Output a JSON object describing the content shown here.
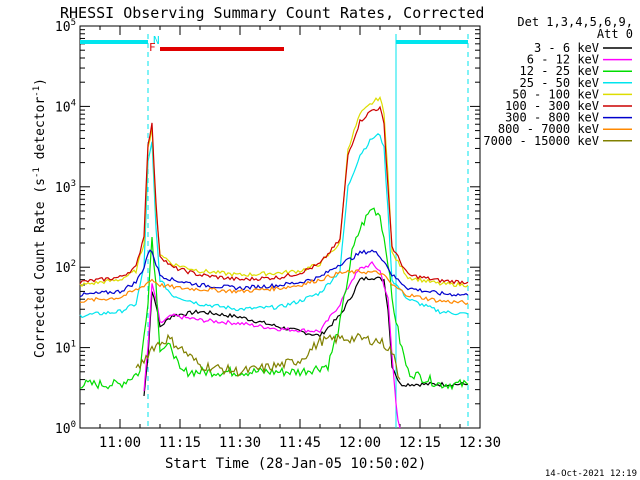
{
  "chart_data": {
    "type": "line",
    "title": "RHESSI Observing Summary Count Rates, Corrected",
    "xlabel": "Start Time (28-Jan-05 10:50:02)",
    "ylabel_main": "Corrected Count Rate (s",
    "ylabel_sup1": "-1",
    "ylabel_mid": " detector",
    "ylabel_sup2": "-1",
    "ylabel_end": ")",
    "y_scale": "log",
    "ylim": [
      1,
      100000
    ],
    "xlim": [
      "10:50",
      "12:30"
    ],
    "x_ticks": [
      "11:00",
      "11:15",
      "11:30",
      "11:45",
      "12:00",
      "12:15",
      "12:30"
    ],
    "y_ticks": [
      {
        "value": 1,
        "base": "10",
        "exp": "0"
      },
      {
        "value": 10,
        "base": "10",
        "exp": "1"
      },
      {
        "value": 100,
        "base": "10",
        "exp": "2"
      },
      {
        "value": 1000,
        "base": "10",
        "exp": "3"
      },
      {
        "value": 10000,
        "base": "10",
        "exp": "4"
      },
      {
        "value": 100000,
        "base": "10",
        "exp": "5"
      }
    ],
    "legend_header": [
      "Det 1,3,4,5,6,9,",
      "Att 0"
    ],
    "legend_position": "right",
    "timestamp": "14-Oct-2021 12:19",
    "annotations": {
      "N_label": "N",
      "F_label": "F"
    },
    "markers": {
      "night_color": "#00e5ee",
      "flag_color": "#e00000",
      "night_bars": [
        [
          "10:50",
          "11:07"
        ],
        [
          "12:09",
          "12:27"
        ]
      ],
      "night_boundaries": [
        "11:07",
        "12:09",
        "12:27"
      ],
      "flag_bar": [
        "11:10",
        "11:41"
      ]
    },
    "series": [
      {
        "name": "3 - 6 keV",
        "color": "#000000",
        "points": [
          [
            "11:06",
            2.5
          ],
          [
            "11:07",
            8
          ],
          [
            "11:08",
            50
          ],
          [
            "11:09",
            35
          ],
          [
            "11:10",
            18
          ],
          [
            "11:13",
            25
          ],
          [
            "11:20",
            28
          ],
          [
            "11:30",
            24
          ],
          [
            "11:40",
            18
          ],
          [
            "11:50",
            14
          ],
          [
            "11:55",
            25
          ],
          [
            "11:58",
            45
          ],
          [
            "12:00",
            70
          ],
          [
            "12:03",
            75
          ],
          [
            "12:06",
            70
          ],
          [
            "12:07",
            30
          ],
          [
            "12:08",
            6
          ],
          [
            "12:10",
            3.5
          ],
          [
            "12:27",
            3.5
          ]
        ]
      },
      {
        "name": "6 - 12 keV",
        "color": "#ff00ff",
        "points": [
          [
            "11:06",
            3
          ],
          [
            "11:07",
            10
          ],
          [
            "11:08",
            60
          ],
          [
            "11:09",
            40
          ],
          [
            "11:10",
            20
          ],
          [
            "11:13",
            25
          ],
          [
            "11:20",
            22
          ],
          [
            "11:30",
            20
          ],
          [
            "11:40",
            17
          ],
          [
            "11:50",
            16
          ],
          [
            "11:55",
            35
          ],
          [
            "11:58",
            70
          ],
          [
            "12:00",
            95
          ],
          [
            "12:03",
            110
          ],
          [
            "12:05",
            90
          ],
          [
            "12:07",
            40
          ],
          [
            "12:08",
            8
          ],
          [
            "12:09",
            2
          ],
          [
            "12:10",
            0.8
          ]
        ]
      },
      {
        "name": "12 - 25 keV",
        "color": "#00dd00",
        "points": [
          [
            "10:50",
            3.5
          ],
          [
            "11:00",
            3.5
          ],
          [
            "11:05",
            5
          ],
          [
            "11:07",
            40
          ],
          [
            "11:08",
            240
          ],
          [
            "11:09",
            60
          ],
          [
            "11:10",
            10
          ],
          [
            "11:13",
            10
          ],
          [
            "11:15",
            5
          ],
          [
            "11:30",
            5
          ],
          [
            "11:45",
            5
          ],
          [
            "11:52",
            6
          ],
          [
            "11:55",
            20
          ],
          [
            "11:58",
            150
          ],
          [
            "12:00",
            300
          ],
          [
            "12:03",
            550
          ],
          [
            "12:05",
            450
          ],
          [
            "12:07",
            120
          ],
          [
            "12:08",
            40
          ],
          [
            "12:10",
            12
          ],
          [
            "12:12",
            5
          ],
          [
            "12:20",
            3.5
          ],
          [
            "12:27",
            3.5
          ]
        ]
      },
      {
        "name": "25 - 50 keV",
        "color": "#00e5ee",
        "points": [
          [
            "10:50",
            25
          ],
          [
            "11:00",
            28
          ],
          [
            "11:04",
            35
          ],
          [
            "11:06",
            100
          ],
          [
            "11:07",
            2000
          ],
          [
            "11:08",
            3500
          ],
          [
            "11:09",
            300
          ],
          [
            "11:10",
            70
          ],
          [
            "11:13",
            45
          ],
          [
            "11:20",
            35
          ],
          [
            "11:30",
            30
          ],
          [
            "11:40",
            32
          ],
          [
            "11:45",
            38
          ],
          [
            "11:50",
            48
          ],
          [
            "11:55",
            90
          ],
          [
            "11:57",
            1000
          ],
          [
            "12:00",
            2500
          ],
          [
            "12:03",
            4000
          ],
          [
            "12:05",
            4500
          ],
          [
            "12:06",
            3000
          ],
          [
            "12:07",
            500
          ],
          [
            "12:08",
            70
          ],
          [
            "12:12",
            40
          ],
          [
            "12:20",
            28
          ],
          [
            "12:27",
            26
          ]
        ]
      },
      {
        "name": "50 - 100 keV",
        "color": "#dddd00",
        "points": [
          [
            "10:50",
            60
          ],
          [
            "11:00",
            70
          ],
          [
            "11:04",
            90
          ],
          [
            "11:06",
            200
          ],
          [
            "11:07",
            3000
          ],
          [
            "11:08",
            5500
          ],
          [
            "11:09",
            500
          ],
          [
            "11:10",
            150
          ],
          [
            "11:13",
            110
          ],
          [
            "11:20",
            90
          ],
          [
            "11:30",
            80
          ],
          [
            "11:40",
            85
          ],
          [
            "11:45",
            90
          ],
          [
            "11:50",
            110
          ],
          [
            "11:55",
            200
          ],
          [
            "11:57",
            3000
          ],
          [
            "12:00",
            8000
          ],
          [
            "12:03",
            11000
          ],
          [
            "12:05",
            13000
          ],
          [
            "12:06",
            8000
          ],
          [
            "12:07",
            1500
          ],
          [
            "12:08",
            150
          ],
          [
            "12:12",
            75
          ],
          [
            "12:20",
            62
          ],
          [
            "12:27",
            60
          ]
        ]
      },
      {
        "name": "100 - 300 keV",
        "color": "#cc0000",
        "points": [
          [
            "10:50",
            65
          ],
          [
            "11:00",
            75
          ],
          [
            "11:04",
            100
          ],
          [
            "11:06",
            250
          ],
          [
            "11:07",
            3500
          ],
          [
            "11:08",
            6000
          ],
          [
            "11:09",
            600
          ],
          [
            "11:10",
            140
          ],
          [
            "11:13",
            100
          ],
          [
            "11:20",
            80
          ],
          [
            "11:30",
            70
          ],
          [
            "11:40",
            75
          ],
          [
            "11:45",
            85
          ],
          [
            "11:50",
            110
          ],
          [
            "11:55",
            220
          ],
          [
            "11:57",
            2500
          ],
          [
            "12:00",
            6500
          ],
          [
            "12:03",
            9000
          ],
          [
            "12:05",
            9500
          ],
          [
            "12:06",
            6000
          ],
          [
            "12:07",
            1000
          ],
          [
            "12:08",
            180
          ],
          [
            "12:12",
            80
          ],
          [
            "12:20",
            68
          ],
          [
            "12:27",
            65
          ]
        ]
      },
      {
        "name": "300 - 800 keV",
        "color": "#0000cc",
        "points": [
          [
            "10:50",
            45
          ],
          [
            "11:00",
            50
          ],
          [
            "11:04",
            65
          ],
          [
            "11:06",
            100
          ],
          [
            "11:07",
            150
          ],
          [
            "11:08",
            160
          ],
          [
            "11:09",
            110
          ],
          [
            "11:10",
            80
          ],
          [
            "11:13",
            70
          ],
          [
            "11:20",
            60
          ],
          [
            "11:30",
            55
          ],
          [
            "11:40",
            60
          ],
          [
            "11:45",
            65
          ],
          [
            "11:50",
            75
          ],
          [
            "11:55",
            110
          ],
          [
            "11:58",
            130
          ],
          [
            "12:00",
            150
          ],
          [
            "12:03",
            160
          ],
          [
            "12:05",
            140
          ],
          [
            "12:07",
            100
          ],
          [
            "12:08",
            80
          ],
          [
            "12:12",
            55
          ],
          [
            "12:20",
            47
          ],
          [
            "12:27",
            45
          ]
        ]
      },
      {
        "name": "800 - 7000 keV",
        "color": "#ff8800",
        "points": [
          [
            "10:50",
            38
          ],
          [
            "11:00",
            42
          ],
          [
            "11:05",
            55
          ],
          [
            "11:07",
            65
          ],
          [
            "11:08",
            70
          ],
          [
            "11:10",
            60
          ],
          [
            "11:15",
            55
          ],
          [
            "11:30",
            50
          ],
          [
            "11:40",
            55
          ],
          [
            "11:45",
            60
          ],
          [
            "11:50",
            70
          ],
          [
            "11:55",
            85
          ],
          [
            "12:00",
            88
          ],
          [
            "12:05",
            85
          ],
          [
            "12:07",
            70
          ],
          [
            "12:08",
            60
          ],
          [
            "12:12",
            45
          ],
          [
            "12:20",
            38
          ],
          [
            "12:27",
            36
          ]
        ]
      },
      {
        "name": "7000 - 15000 keV",
        "color": "#808000",
        "points": [
          [
            "11:04",
            5
          ],
          [
            "11:08",
            10
          ],
          [
            "11:12",
            13
          ],
          [
            "11:15",
            10
          ],
          [
            "11:20",
            6
          ],
          [
            "11:30",
            5
          ],
          [
            "11:40",
            6
          ],
          [
            "11:45",
            7
          ],
          [
            "11:50",
            12
          ],
          [
            "11:55",
            13
          ],
          [
            "12:00",
            13
          ],
          [
            "12:05",
            12
          ],
          [
            "12:07",
            10
          ],
          [
            "12:08",
            9
          ],
          [
            "12:10",
            4
          ]
        ]
      }
    ]
  }
}
